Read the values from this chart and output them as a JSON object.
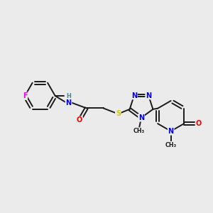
{
  "bg_color": "#ebebeb",
  "bond_color": "#1a1a1a",
  "atom_colors": {
    "F": "#ee00ee",
    "N": "#0000ee",
    "O": "#ee0000",
    "S": "#cccc00",
    "C": "#1a1a1a",
    "H": "#4a8888"
  },
  "figsize": [
    3.0,
    3.0
  ],
  "dpi": 100
}
